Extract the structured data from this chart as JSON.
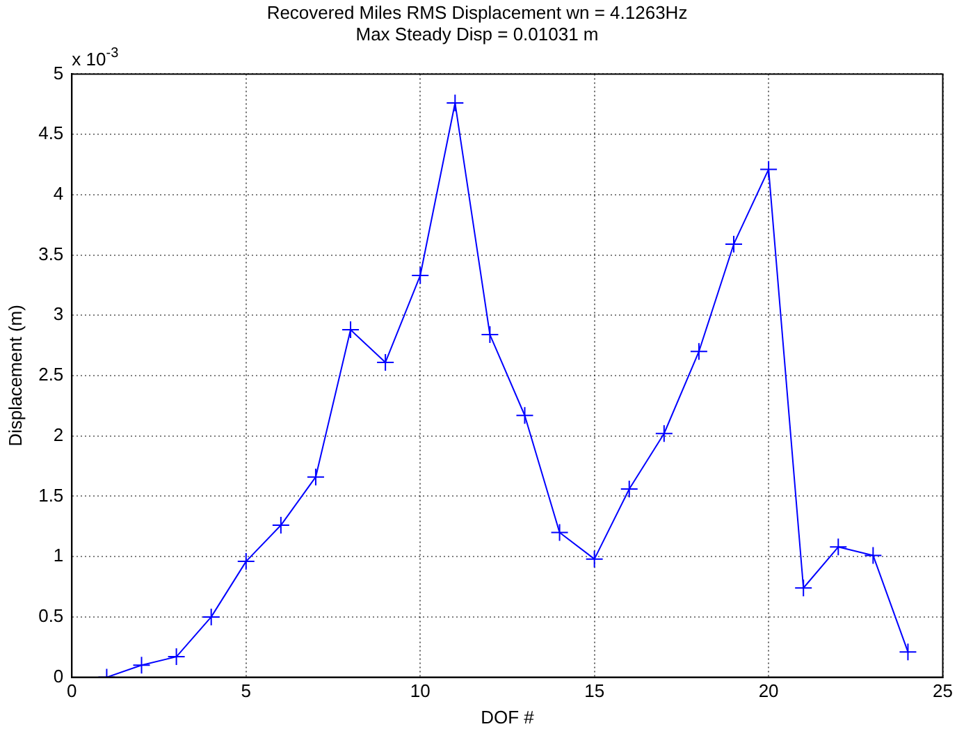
{
  "chart_data": {
    "type": "line",
    "title": "Recovered Miles RMS Displacement wn = 4.1263Hz",
    "subtitle": "Max Steady Disp = 0.01031 m",
    "xlabel": "DOF #",
    "ylabel": "Displacement (m)",
    "annotations": [
      "x 10$^{-3}$"
    ],
    "x": [
      1,
      2,
      3,
      4,
      5,
      6,
      7,
      8,
      9,
      10,
      11,
      12,
      13,
      14,
      15,
      16,
      17,
      18,
      19,
      20,
      21,
      22,
      23,
      24
    ],
    "series": [
      {
        "color": "#0000ff",
        "values": [
          0,
          0.1,
          0.17,
          0.5,
          0.96,
          1.26,
          1.66,
          2.88,
          2.61,
          3.33,
          4.76,
          2.84,
          2.17,
          1.2,
          0.98,
          1.56,
          2.02,
          2.7,
          3.59,
          4.21,
          0.74,
          1.08,
          1.01,
          0.21
        ]
      }
    ],
    "xlim": [
      0,
      25
    ],
    "xticks": [
      0,
      5,
      10,
      15,
      20,
      25
    ],
    "ylim": [
      0,
      5
    ],
    "yticks": [
      0,
      0.5,
      1,
      1.5,
      2,
      2.5,
      3,
      3.5,
      4,
      4.5,
      5
    ],
    "grid": true,
    "marker": "cross",
    "line_style": "solid",
    "legend": false
  }
}
